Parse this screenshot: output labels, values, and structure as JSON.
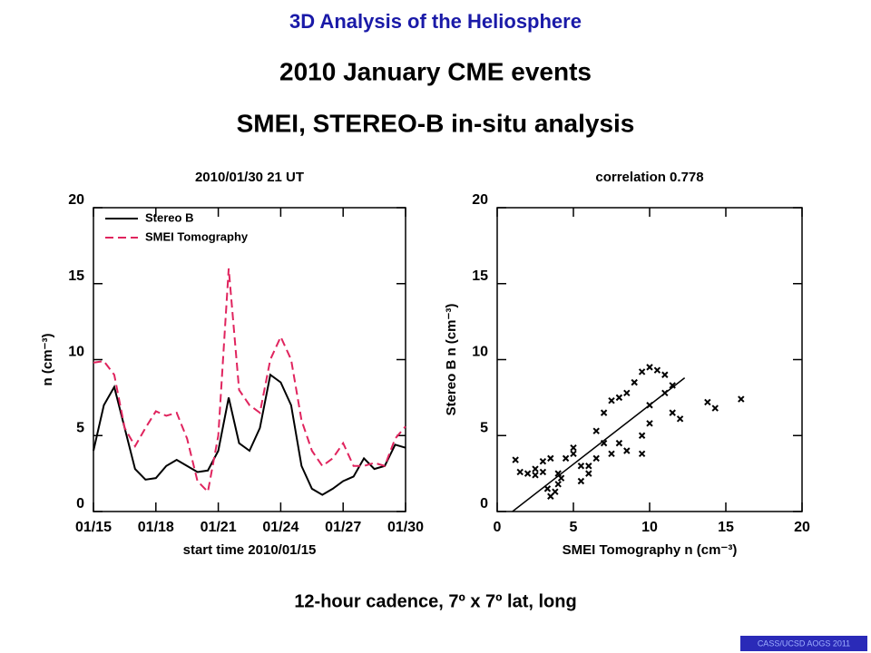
{
  "header": {
    "title": "3D Analysis of the Heliosphere",
    "subtitle": "2010 January CME events",
    "subtitle2": "SMEI, STEREO-B in-situ analysis"
  },
  "footer": {
    "caption": "12-hour cadence, 7º x 7º lat, long",
    "badge": "CASS/UCSD AOGS 2011"
  },
  "chart_data": [
    {
      "type": "line",
      "title": "2010/01/30 21 UT",
      "x_label": "start time 2010/01/15",
      "y_label": "n (cm⁻³)",
      "x": [
        0,
        0.5,
        1,
        1.5,
        2,
        2.5,
        3,
        3.5,
        4,
        4.5,
        5,
        5.5,
        6,
        6.5,
        7,
        7.5,
        8,
        8.5,
        9,
        9.5,
        10,
        10.5,
        11,
        11.5,
        12,
        12.5,
        13,
        13.5,
        14,
        14.5,
        15
      ],
      "series": [
        {
          "name": "Stereo B",
          "color": "#000000",
          "dash": false,
          "values": [
            4,
            7,
            8.2,
            5.5,
            2.8,
            2.1,
            2.2,
            3.0,
            3.4,
            3.0,
            2.6,
            2.7,
            4.0,
            7.5,
            4.5,
            4.0,
            5.5,
            9.0,
            8.5,
            7.0,
            3.0,
            1.5,
            1.1,
            1.5,
            2.0,
            2.3,
            3.5,
            2.8,
            3.0,
            4.4,
            4.2
          ]
        },
        {
          "name": "SMEI Tomography",
          "color": "#e0245e",
          "dash": true,
          "values": [
            9.8,
            9.9,
            9.0,
            5.5,
            4.3,
            5.5,
            6.6,
            6.3,
            6.5,
            4.8,
            2.0,
            1.3,
            5,
            16,
            8,
            7,
            6.5,
            10,
            11.5,
            10,
            6,
            4,
            3,
            3.5,
            4.5,
            3,
            3,
            3.2,
            3,
            4.8,
            5.6
          ]
        }
      ],
      "xlim": [
        0,
        15
      ],
      "xticks": [
        {
          "value": 0,
          "label": "01/15"
        },
        {
          "value": 3,
          "label": "01/18"
        },
        {
          "value": 6,
          "label": "01/21"
        },
        {
          "value": 9,
          "label": "01/24"
        },
        {
          "value": 12,
          "label": "01/27"
        },
        {
          "value": 15,
          "label": "01/30"
        }
      ],
      "ylim": [
        0,
        20
      ],
      "yticks": [
        0,
        5,
        10,
        15,
        20
      ]
    },
    {
      "type": "scatter",
      "title": "correlation 0.778",
      "x_label": "SMEI Tomography n (cm⁻³)",
      "y_label": "Stereo B n (cm⁻³)",
      "color": "#000000",
      "x": [
        1.2,
        1.5,
        2,
        2.5,
        3,
        3,
        3.3,
        3.5,
        3.8,
        4,
        4.2,
        3.5,
        4.5,
        5,
        5.5,
        5.5,
        6,
        6.5,
        6.5,
        7,
        7.5,
        7,
        7.5,
        8,
        8.5,
        9,
        9.5,
        10,
        10.5,
        11,
        11.5,
        10,
        9.5,
        9.5,
        10,
        11,
        11.5,
        12,
        13.8,
        14.3,
        16,
        2.5,
        4,
        5,
        6,
        8,
        8.5
      ],
      "y": [
        3.4,
        2.6,
        2.5,
        2.4,
        2.6,
        3.3,
        1.5,
        1.0,
        1.3,
        1.8,
        2.2,
        3.5,
        3.5,
        4.2,
        3.0,
        2.0,
        2.5,
        3.5,
        5.3,
        4.5,
        3.8,
        6.5,
        7.3,
        7.5,
        7.8,
        8.5,
        9.2,
        9.5,
        9.3,
        9.0,
        8.3,
        5.8,
        5.0,
        3.8,
        7,
        7.8,
        6.5,
        6.1,
        7.2,
        6.8,
        7.4,
        2.8,
        2.5,
        3.8,
        3.0,
        4.5,
        4
      ],
      "fit_x": [
        1,
        12.3
      ],
      "fit_y": [
        0,
        8.8
      ],
      "xlim": [
        0,
        20
      ],
      "xticks": [
        0,
        5,
        10,
        15,
        20
      ],
      "ylim": [
        0,
        20
      ],
      "yticks": [
        0,
        5,
        10,
        15,
        20
      ]
    }
  ]
}
